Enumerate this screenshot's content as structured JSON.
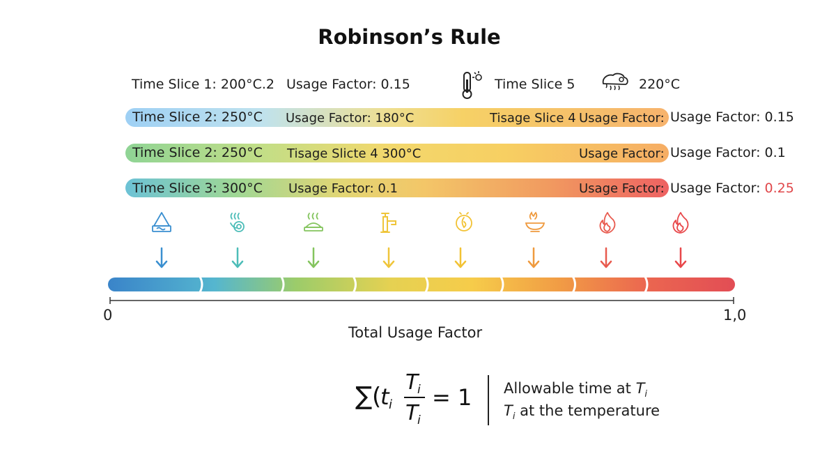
{
  "title": "Robinson’s Rule",
  "top_row": {
    "label_1": "Time Slice 1: 200°C.2",
    "label_2": "Usage Factor: 0.15",
    "label_3": "Time Slice 5",
    "label_4": "220°C",
    "icon_left": "thermometer-icon",
    "icon_right": "oven-icon"
  },
  "bands": [
    {
      "left": "Time Slice 2: 250°C",
      "mid": "Usage Factor: 180°C",
      "mid2": "Tisage Slice 4",
      "end": "Usage Factor:",
      "right": "Usage Factor: 0.15"
    },
    {
      "left": "Time Slice 2: 250°C",
      "mid": "Tisage Slicte 4 300°C",
      "end": "Usage Factor:",
      "right": "Usage Factor: 0.1"
    },
    {
      "left": "Time Slice 3: 300°C",
      "mid": "Usage Factor: 0.1",
      "end": "Usage Factor:",
      "right_prefix": "Usage Factor: ",
      "right_value": "0.25"
    }
  ],
  "stage_icons": [
    "ice-tray-icon",
    "steam-icon",
    "warm-dish-icon",
    "faucet-icon",
    "heat-dial-icon",
    "hot-pan-icon",
    "flame-icon",
    "flame-icon"
  ],
  "colors": {
    "stages": [
      "#3a8fd0",
      "#4dbdb8",
      "#84c45e",
      "#efc53a",
      "#f2c234",
      "#ef9a3e",
      "#e85a4e",
      "#e8474a"
    ],
    "accent_red": "#e0474a"
  },
  "scale": {
    "min_label": "0",
    "max_label": "1,0",
    "axis_title": "Total Usage Factor",
    "min": 0,
    "max": 1,
    "segment_boundaries": [
      0,
      0.15,
      0.28,
      0.395,
      0.51,
      0.63,
      0.745,
      0.86,
      1.0
    ]
  },
  "formula": {
    "sigma": "∑",
    "open": "(",
    "t": "t",
    "sub_i": "i",
    "num": "T",
    "den": "T",
    "equals_one": "= 1"
  },
  "notes": {
    "line1_prefix": "Allowable time at ",
    "line1_var": "T",
    "line1_sub": "i",
    "line2_var": "T",
    "line2_sub": "i",
    "line2_suffix": " at the temperature"
  }
}
